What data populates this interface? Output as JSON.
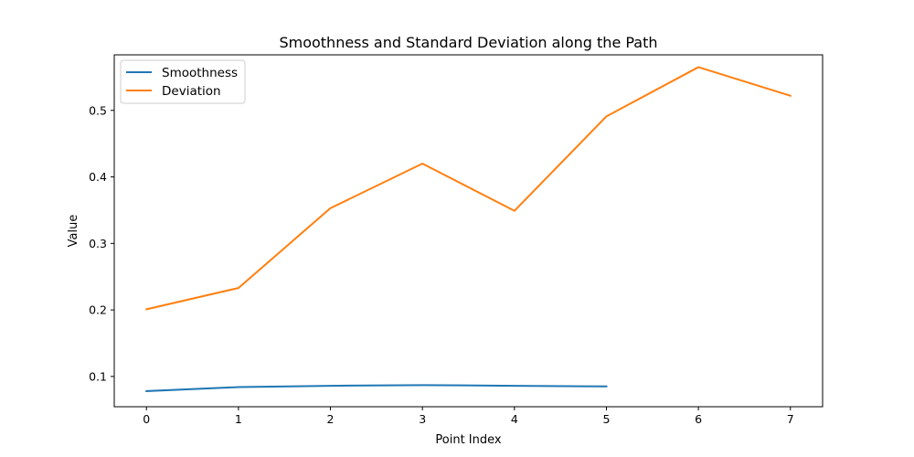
{
  "chart_data": {
    "type": "line",
    "title": "Smoothness and Standard Deviation along the Path",
    "xlabel": "Point Index",
    "ylabel": "Value",
    "xlim": [
      -0.35,
      7.35
    ],
    "ylim": [
      0.0545,
      0.5835
    ],
    "x_ticks": [
      0,
      1,
      2,
      3,
      4,
      5,
      6,
      7
    ],
    "y_ticks": [
      0.1,
      0.2,
      0.3,
      0.4,
      0.5
    ],
    "y_tick_labels": [
      "0.1",
      "0.2",
      "0.3",
      "0.4",
      "0.5"
    ],
    "grid": false,
    "legend_position": "top-left",
    "series": [
      {
        "name": "Smoothness",
        "color": "#1f77b4",
        "x": [
          0,
          1,
          2,
          3,
          4,
          5
        ],
        "y": [
          0.078,
          0.084,
          0.086,
          0.087,
          0.086,
          0.085
        ]
      },
      {
        "name": "Deviation",
        "color": "#ff7f0e",
        "x": [
          0,
          1,
          2,
          3,
          4,
          5,
          6,
          7
        ],
        "y": [
          0.201,
          0.233,
          0.353,
          0.42,
          0.349,
          0.491,
          0.565,
          0.522
        ]
      }
    ]
  }
}
